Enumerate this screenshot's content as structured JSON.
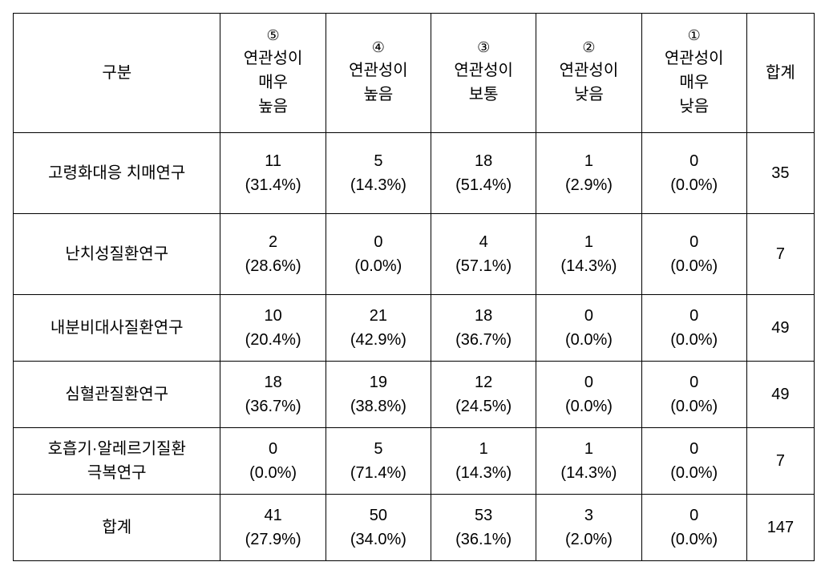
{
  "table": {
    "type": "table",
    "background_color": "#ffffff",
    "border_color": "#000000",
    "font_size": 20,
    "header": {
      "category_label": "구분",
      "likert5": {
        "circled": "⑤",
        "line1": "연관성이",
        "line2": "매우",
        "line3": "높음"
      },
      "likert4": {
        "circled": "④",
        "line1": "연관성이",
        "line2": "높음"
      },
      "likert3": {
        "circled": "③",
        "line1": "연관성이",
        "line2": "보통"
      },
      "likert2": {
        "circled": "②",
        "line1": "연관성이",
        "line2": "낮음"
      },
      "likert1": {
        "circled": "①",
        "line1": "연관성이",
        "line2": "매우",
        "line3": "낮음"
      },
      "total_label": "합계"
    },
    "rows": [
      {
        "label": "고령화대응 치매연구",
        "likert5": {
          "count": "11",
          "percent": "(31.4%)"
        },
        "likert4": {
          "count": "5",
          "percent": "(14.3%)"
        },
        "likert3": {
          "count": "18",
          "percent": "(51.4%)"
        },
        "likert2": {
          "count": "1",
          "percent": "(2.9%)"
        },
        "likert1": {
          "count": "0",
          "percent": "(0.0%)"
        },
        "total": "35"
      },
      {
        "label": "난치성질환연구",
        "likert5": {
          "count": "2",
          "percent": "(28.6%)"
        },
        "likert4": {
          "count": "0",
          "percent": "(0.0%)"
        },
        "likert3": {
          "count": "4",
          "percent": "(57.1%)"
        },
        "likert2": {
          "count": "1",
          "percent": "(14.3%)"
        },
        "likert1": {
          "count": "0",
          "percent": "(0.0%)"
        },
        "total": "7"
      },
      {
        "label": "내분비대사질환연구",
        "likert5": {
          "count": "10",
          "percent": "(20.4%)"
        },
        "likert4": {
          "count": "21",
          "percent": "(42.9%)"
        },
        "likert3": {
          "count": "18",
          "percent": "(36.7%)"
        },
        "likert2": {
          "count": "0",
          "percent": "(0.0%)"
        },
        "likert1": {
          "count": "0",
          "percent": "(0.0%)"
        },
        "total": "49"
      },
      {
        "label": "심혈관질환연구",
        "likert5": {
          "count": "18",
          "percent": "(36.7%)"
        },
        "likert4": {
          "count": "19",
          "percent": "(38.8%)"
        },
        "likert3": {
          "count": "12",
          "percent": "(24.5%)"
        },
        "likert2": {
          "count": "0",
          "percent": "(0.0%)"
        },
        "likert1": {
          "count": "0",
          "percent": "(0.0%)"
        },
        "total": "49"
      },
      {
        "label_line1": "호흡기·알레르기질환",
        "label_line2": "극복연구",
        "likert5": {
          "count": "0",
          "percent": "(0.0%)"
        },
        "likert4": {
          "count": "5",
          "percent": "(71.4%)"
        },
        "likert3": {
          "count": "1",
          "percent": "(14.3%)"
        },
        "likert2": {
          "count": "1",
          "percent": "(14.3%)"
        },
        "likert1": {
          "count": "0",
          "percent": "(0.0%)"
        },
        "total": "7"
      },
      {
        "label": "합계",
        "likert5": {
          "count": "41",
          "percent": "(27.9%)"
        },
        "likert4": {
          "count": "50",
          "percent": "(34.0%)"
        },
        "likert3": {
          "count": "53",
          "percent": "(36.1%)"
        },
        "likert2": {
          "count": "3",
          "percent": "(2.0%)"
        },
        "likert1": {
          "count": "0",
          "percent": "(0.0%)"
        },
        "total": "147"
      }
    ]
  }
}
